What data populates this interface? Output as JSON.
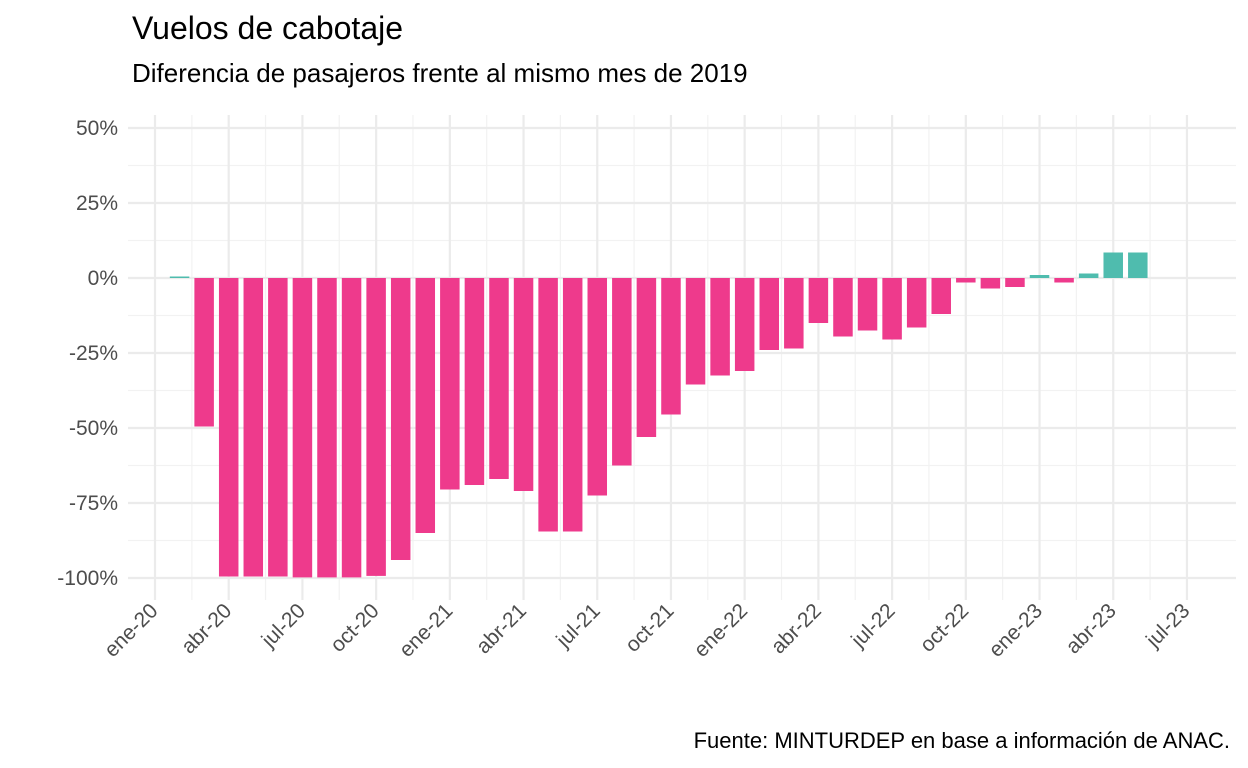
{
  "chart_data": {
    "type": "bar",
    "title": "Vuelos de cabotaje",
    "subtitle": "Diferencia de pasajeros frente al mismo mes de 2019",
    "caption": "Fuente: MINTURDEP en base a información de ANAC.",
    "xlabel": "",
    "ylabel": "",
    "ylim": [
      -1.05,
      0.55
    ],
    "y_ticks": [
      {
        "value": 0.5,
        "label": "50%"
      },
      {
        "value": 0.25,
        "label": "25%"
      },
      {
        "value": 0,
        "label": "0%"
      },
      {
        "value": -0.25,
        "label": "-25%"
      },
      {
        "value": -0.5,
        "label": "-50%"
      },
      {
        "value": -0.75,
        "label": "-75%"
      },
      {
        "value": -1,
        "label": "-100%"
      }
    ],
    "x_ticks": [
      "ene-20",
      "abr-20",
      "jul-20",
      "oct-20",
      "ene-21",
      "abr-21",
      "jul-21",
      "oct-21",
      "ene-22",
      "abr-22",
      "jul-22",
      "oct-22",
      "ene-23",
      "abr-23",
      "jul-23"
    ],
    "colors": {
      "positive": "#4fbcae",
      "negative": "#ee3a8c"
    },
    "grid": true,
    "legend": "none",
    "categories": [
      "feb-20",
      "mar-20",
      "abr-20",
      "may-20",
      "jun-20",
      "jul-20",
      "ago-20",
      "sep-20",
      "oct-20",
      "nov-20",
      "dic-20",
      "ene-21",
      "feb-21",
      "mar-21",
      "abr-21",
      "may-21",
      "jun-21",
      "jul-21",
      "ago-21",
      "sep-21",
      "oct-21",
      "nov-21",
      "dic-21",
      "ene-22",
      "feb-22",
      "mar-22",
      "abr-22",
      "may-22",
      "jun-22",
      "jul-22",
      "ago-22",
      "sep-22",
      "oct-22",
      "nov-22",
      "dic-22",
      "ene-23",
      "feb-23",
      "mar-23",
      "abr-23",
      "may-23"
    ],
    "values": [
      0.005,
      -0.495,
      -0.995,
      -0.995,
      -0.995,
      -0.998,
      -0.998,
      -0.998,
      -0.993,
      -0.94,
      -0.85,
      -0.705,
      -0.69,
      -0.67,
      -0.71,
      -0.845,
      -0.845,
      -0.725,
      -0.625,
      -0.53,
      -0.455,
      -0.355,
      -0.325,
      -0.31,
      -0.24,
      -0.235,
      -0.15,
      -0.195,
      -0.175,
      -0.205,
      -0.165,
      -0.12,
      -0.015,
      -0.035,
      -0.03,
      0.01,
      -0.015,
      0.015,
      0.085,
      0.085
    ]
  }
}
